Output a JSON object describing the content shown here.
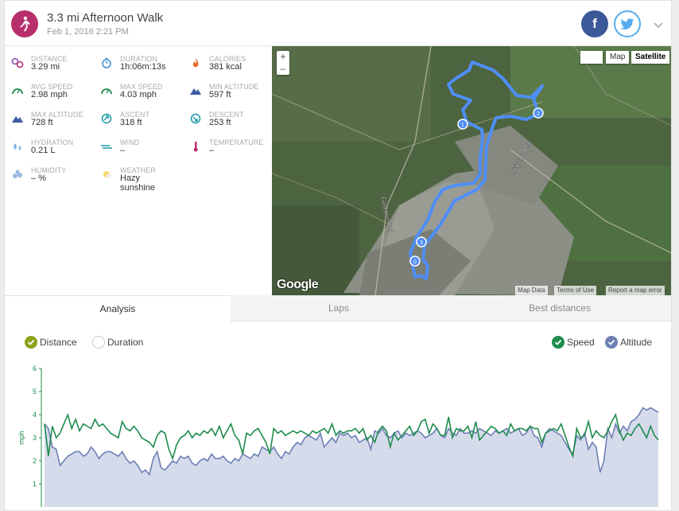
{
  "header": {
    "title": "3.3 mi Afternoon Walk",
    "datetime": "Feb 1, 2016 2:21 PM",
    "activity_icon": "walking-icon",
    "facebook_label": "f",
    "colors": {
      "activity": "#b72f6b",
      "facebook": "#3b5998",
      "twitter": "#55acee"
    }
  },
  "stats": [
    {
      "label": "DISTANCE",
      "value": "3.29 mi",
      "icon": "distance-icon"
    },
    {
      "label": "DURATION",
      "value": "1h:06m:13s",
      "icon": "stopwatch-icon"
    },
    {
      "label": "CALORIES",
      "value": "381 kcal",
      "icon": "flame-icon"
    },
    {
      "label": "AVG SPEED",
      "value": "2.98 mph",
      "icon": "speedometer-icon"
    },
    {
      "label": "MAX SPEED",
      "value": "4.03 mph",
      "icon": "speedometer-icon"
    },
    {
      "label": "MIN ALTITUDE",
      "value": "597 ft",
      "icon": "mountain-icon"
    },
    {
      "label": "MAX ALTITUDE",
      "value": "728 ft",
      "icon": "mountain-icon"
    },
    {
      "label": "ASCENT",
      "value": "318 ft",
      "icon": "ascent-icon"
    },
    {
      "label": "DESCENT",
      "value": "253 ft",
      "icon": "descent-icon"
    },
    {
      "label": "HYDRATION",
      "value": "0.21 L",
      "icon": "water-drops-icon"
    },
    {
      "label": "WIND",
      "value": "–",
      "icon": "wind-icon"
    },
    {
      "label": "TEMPERATURE",
      "value": "–",
      "icon": "thermometer-icon"
    },
    {
      "label": "HUMIDITY",
      "value": "– %",
      "icon": "humidity-icon"
    },
    {
      "label": "WEATHER",
      "value": "Hazy sunshine",
      "icon": "weather-sun-icon"
    }
  ],
  "map": {
    "zoom_in": "+",
    "zoom_out": "–",
    "type_map": "Map",
    "type_satellite": "Satellite",
    "labels": [
      "Gisburn Rd",
      "Skipton Rd"
    ],
    "markers": [
      "0",
      "1",
      "2",
      "3"
    ],
    "attribution": [
      "Map Data",
      "Terms of Use",
      "Report a map error"
    ],
    "google": "Google",
    "route_color": "#4f8ef7"
  },
  "tabs": [
    "Analysis",
    "Laps",
    "Best distances"
  ],
  "toggles": {
    "distance": "Distance",
    "duration": "Duration",
    "speed": "Speed",
    "altitude": "Altitude"
  },
  "chart_data": {
    "type": "line",
    "ylabel": "mph",
    "ylim": [
      0,
      6
    ],
    "yticks": [
      "1",
      "2",
      "3",
      "4",
      "5",
      "6"
    ],
    "x_basis": "Distance",
    "series": [
      {
        "name": "Speed",
        "color": "#1d8c4d",
        "values": [
          3.6,
          2.2,
          3.5,
          3.0,
          3.2,
          3.6,
          4.0,
          3.4,
          3.8,
          3.3,
          3.6,
          3.5,
          3.4,
          3.8,
          3.5,
          3.6,
          3.4,
          3.2,
          3.1,
          3.0,
          3.7,
          3.4,
          3.3,
          3.5,
          3.3,
          3.0,
          2.9,
          2.8,
          2.6,
          3.1,
          3.3,
          3.2,
          2.5,
          2.1,
          2.7,
          3.0,
          3.1,
          3.3,
          3.0,
          3.2,
          3.1,
          3.3,
          3.2,
          3.4,
          3.1,
          3.5,
          3.0,
          3.3,
          3.6,
          3.1,
          2.9,
          2.3,
          3.2,
          3.1,
          3.3,
          3.4,
          3.1,
          2.8,
          2.3,
          3.4,
          3.2,
          3.3,
          3.1,
          3.2,
          3.3,
          3.2,
          3.3,
          3.2,
          3.1,
          3.3,
          3.2,
          3.3,
          3.4,
          3.2,
          3.6,
          3.1,
          3.3,
          3.2,
          3.3,
          3.3,
          3.4,
          3.2,
          3.4,
          2.9,
          3.1,
          2.8,
          3.3,
          3.5,
          3.3,
          2.6,
          3.2,
          2.9,
          3.1,
          3.3,
          3.5,
          3.1,
          3.3,
          3.7,
          3.8,
          3.2,
          3.6,
          3.4,
          3.1,
          3.1,
          3.9,
          3.0,
          3.4,
          3.3,
          3.3,
          3.5,
          3.0,
          3.7,
          2.9,
          3.1,
          3.3,
          3.5,
          3.4,
          3.2,
          3.3,
          3.1,
          3.6,
          3.3,
          3.4,
          3.4,
          3.3,
          3.5,
          3.4,
          3.4,
          2.8,
          3.2,
          3.3,
          3.4,
          3.3,
          3.6,
          3.1,
          2.6,
          2.2,
          3.4,
          3.0,
          3.1,
          3.7,
          3.0,
          3.3,
          3.1,
          3.0,
          3.3,
          3.7,
          4.0,
          3.3,
          2.9,
          3.2,
          3.1,
          3.4,
          3.6,
          3.3,
          3.0,
          3.5,
          3.1,
          2.9
        ]
      },
      {
        "name": "Altitude",
        "color": "#6d7fb4",
        "values": [
          3.6,
          3.4,
          2.6,
          2.5,
          1.8,
          2.0,
          2.2,
          2.3,
          2.4,
          2.4,
          2.2,
          2.3,
          2.6,
          2.4,
          2.1,
          2.3,
          2.4,
          2.4,
          2.3,
          2.2,
          2.4,
          2.1,
          1.9,
          2.0,
          1.8,
          1.5,
          1.6,
          1.4,
          2.1,
          2.4,
          1.7,
          1.6,
          1.8,
          2.0,
          1.9,
          2.2,
          2.1,
          2.2,
          1.9,
          1.8,
          2.0,
          2.1,
          2.0,
          2.3,
          2.1,
          2.1,
          2.2,
          2.0,
          1.9,
          2.1,
          2.0,
          2.3,
          2.2,
          2.1,
          2.3,
          2.2,
          2.6,
          2.5,
          2.4,
          2.6,
          2.3,
          2.1,
          2.4,
          2.3,
          2.6,
          2.8,
          2.7,
          3.0,
          3.1,
          3.0,
          2.9,
          3.2,
          2.6,
          2.8,
          3.0,
          2.8,
          3.2,
          3.1,
          3.2,
          3.0,
          3.1,
          2.8,
          2.9,
          3.0,
          2.5,
          3.3,
          3.2,
          3.4,
          3.1,
          3.0,
          3.2,
          3.3,
          3.0,
          3.2,
          3.1,
          3.2,
          3.3,
          3.2,
          3.0,
          3.1,
          3.2,
          3.4,
          3.1,
          3.0,
          3.4,
          3.2,
          3.1,
          3.4,
          3.2,
          3.2,
          3.3,
          3.2,
          3.4,
          3.3,
          3.2,
          3.1,
          3.3,
          3.2,
          3.3,
          3.4,
          3.2,
          3.3,
          3.4,
          3.1,
          3.2,
          3.5,
          3.1,
          3.0,
          2.6,
          3.2,
          3.4,
          3.3,
          3.2,
          3.1,
          2.8,
          2.5,
          2.3,
          3.1,
          2.9,
          3.2,
          2.5,
          2.8,
          2.6,
          1.5,
          2.0,
          3.4,
          3.0,
          3.6,
          3.2,
          3.5,
          3.3,
          3.7,
          3.8,
          4.0,
          4.3,
          4.2,
          4.3,
          4.2,
          4.1
        ]
      }
    ]
  }
}
